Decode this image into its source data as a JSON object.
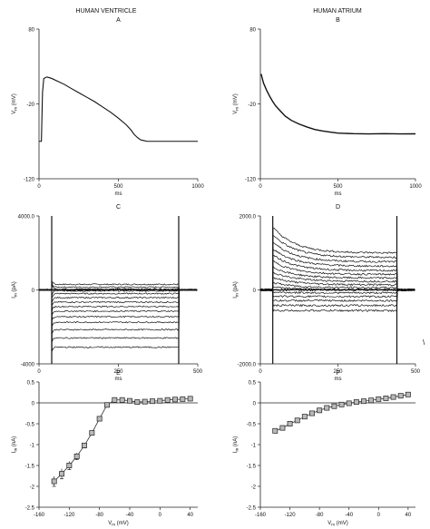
{
  "headers": {
    "left": "HUMAN VENTRICLE",
    "right": "HUMAN ATRIUM"
  },
  "stray_mark": "\\",
  "chart_data": [
    {
      "id": "A",
      "panel_label": "A",
      "type": "line",
      "xlabel": "ms",
      "ylabel_main": "V",
      "ylabel_sub": "m",
      "ylabel_unit": " (mV)",
      "xlim": [
        0,
        1000
      ],
      "ylim": [
        -120,
        80
      ],
      "xticks": [
        0,
        500,
        1000
      ],
      "yticks": [
        -120,
        -20,
        80
      ],
      "series": [
        {
          "x": [
            0,
            15,
            22,
            30,
            50,
            80,
            120,
            160,
            200,
            250,
            300,
            350,
            400,
            450,
            500,
            550,
            580,
            600,
            620,
            640,
            660,
            680,
            700,
            750,
            800,
            900,
            1000
          ],
          "y": [
            -70,
            -70,
            -5,
            14,
            16,
            14,
            10,
            6,
            1,
            -5,
            -11,
            -17,
            -24,
            -31,
            -39,
            -48,
            -55,
            -61,
            -65,
            -68,
            -69,
            -70,
            -70,
            -70,
            -70,
            -70,
            -70
          ]
        }
      ]
    },
    {
      "id": "B",
      "panel_label": "B",
      "type": "line",
      "xlabel": "ms",
      "ylabel_main": "V",
      "ylabel_sub": "m",
      "ylabel_unit": " (mV)",
      "xlim": [
        0,
        1000
      ],
      "ylim": [
        -120,
        80
      ],
      "xticks": [
        0,
        500,
        1000
      ],
      "yticks": [
        -120,
        -20,
        80
      ],
      "series": [
        {
          "x": [
            5,
            20,
            40,
            60,
            80,
            100,
            130,
            160,
            200,
            250,
            300,
            350,
            400,
            450,
            500,
            600,
            700,
            800,
            900,
            1000
          ],
          "y": [
            20,
            8,
            -2,
            -10,
            -17,
            -23,
            -30,
            -36,
            -42,
            -47,
            -51,
            -54,
            -56,
            -58,
            -59,
            -60,
            -60,
            -60,
            -60,
            -60
          ]
        }
      ]
    },
    {
      "id": "C",
      "panel_label": "C",
      "type": "line",
      "xlabel": "ms",
      "ylabel_main": "I",
      "ylabel_sub": "m",
      "ylabel_unit": " (pA)",
      "xlim": [
        0,
        500
      ],
      "ylim": [
        -4000,
        4000
      ],
      "xticks": [
        0,
        250,
        500
      ],
      "ytick_labels": [
        "4000.0",
        "0",
        "-4000"
      ],
      "yticks": [
        4000,
        0,
        -4000
      ],
      "step": {
        "start": 40,
        "end": 440,
        "holding": 0,
        "levels": [
          300,
          150,
          50,
          -50,
          -200,
          -420,
          -660,
          -900,
          -1150,
          -1450,
          -1750,
          -2150,
          -2600,
          -3100
        ]
      }
    },
    {
      "id": "D",
      "panel_label": "D",
      "type": "line",
      "xlabel": "ms",
      "ylabel_main": "I",
      "ylabel_sub": "m",
      "ylabel_unit": " (pA)",
      "xlim": [
        0,
        500
      ],
      "ylim": [
        -2000,
        2000
      ],
      "xticks": [
        0,
        250,
        500
      ],
      "ytick_labels": [
        "2000.0",
        "0",
        "-2000.0"
      ],
      "yticks": [
        2000,
        0,
        -2000
      ],
      "step": {
        "start": 40,
        "end": 440,
        "holding": 0,
        "levels": [
          [
            1700,
            1000
          ],
          [
            1500,
            880
          ],
          [
            1300,
            760
          ],
          [
            1120,
            640
          ],
          [
            950,
            520
          ],
          [
            780,
            420
          ],
          [
            620,
            320
          ],
          [
            480,
            230
          ],
          [
            340,
            140
          ],
          [
            200,
            60
          ],
          [
            90,
            10
          ],
          [
            -60,
            -80
          ],
          [
            -170,
            -180
          ],
          [
            -290,
            -290
          ],
          [
            -420,
            -420
          ],
          [
            -560,
            -560
          ]
        ]
      }
    },
    {
      "id": "E",
      "panel_label": "E",
      "type": "scatter",
      "xlabel_main": "V",
      "xlabel_sub": "m",
      "xlabel_unit": " (mV)",
      "ylabel_main": "I",
      "ylabel_sub": "m",
      "ylabel_unit": " (nA)",
      "xlim": [
        -160,
        50
      ],
      "ylim": [
        -2.5,
        0.5
      ],
      "xticks": [
        -160,
        -120,
        -80,
        -40,
        0,
        40
      ],
      "yticks": [
        0.5,
        0,
        -0.5,
        -1,
        -1.5,
        -2,
        -2.5
      ],
      "ytick_labels": [
        "0.5",
        "0",
        "-0.5",
        "-1",
        "-1.5",
        "-2",
        "-2.5"
      ],
      "x": [
        -140,
        -130,
        -120,
        -110,
        -100,
        -90,
        -80,
        -70,
        -60,
        -50,
        -40,
        -30,
        -20,
        -10,
        0,
        10,
        20,
        30,
        40
      ],
      "y": [
        -1.88,
        -1.7,
        -1.5,
        -1.28,
        -1.02,
        -0.72,
        -0.38,
        -0.05,
        0.07,
        0.07,
        0.05,
        0.02,
        0.03,
        0.04,
        0.05,
        0.07,
        0.08,
        0.09,
        0.1
      ],
      "err": [
        0.12,
        0.12,
        0.1,
        0.08,
        0.06,
        0.05,
        0.04,
        0.03,
        0.02,
        0.02,
        0.02,
        0.02,
        0.02,
        0.02,
        0.02,
        0.02,
        0.02,
        0.02,
        0.04
      ]
    },
    {
      "id": "F",
      "panel_label": "F",
      "type": "scatter",
      "xlabel_main": "V",
      "xlabel_sub": "m",
      "xlabel_unit": " (mV)",
      "ylabel_main": "I",
      "ylabel_sub": "m",
      "ylabel_unit": " (nA)",
      "xlim": [
        -160,
        50
      ],
      "ylim": [
        -2.5,
        0.5
      ],
      "xticks": [
        -160,
        -120,
        -80,
        -40,
        0,
        40
      ],
      "yticks": [
        0.5,
        0,
        -0.5,
        -1,
        -1.5,
        -2,
        -2.5
      ],
      "ytick_labels": [
        "0.5",
        "0",
        "-0.5",
        "-1",
        "-1.5",
        "-2",
        "-2.5"
      ],
      "x": [
        -140,
        -130,
        -120,
        -110,
        -100,
        -90,
        -80,
        -70,
        -60,
        -50,
        -40,
        -30,
        -20,
        -10,
        0,
        10,
        20,
        30,
        40
      ],
      "y": [
        -0.67,
        -0.6,
        -0.5,
        -0.42,
        -0.33,
        -0.25,
        -0.18,
        -0.12,
        -0.08,
        -0.04,
        -0.01,
        0.02,
        0.04,
        0.06,
        0.09,
        0.11,
        0.14,
        0.17,
        0.2
      ],
      "err": [
        0.05,
        0.05,
        0.05,
        0.04,
        0.04,
        0.03,
        0.03,
        0.02,
        0.02,
        0.02,
        0.02,
        0.02,
        0.02,
        0.02,
        0.02,
        0.02,
        0.02,
        0.03,
        0.03
      ]
    }
  ]
}
